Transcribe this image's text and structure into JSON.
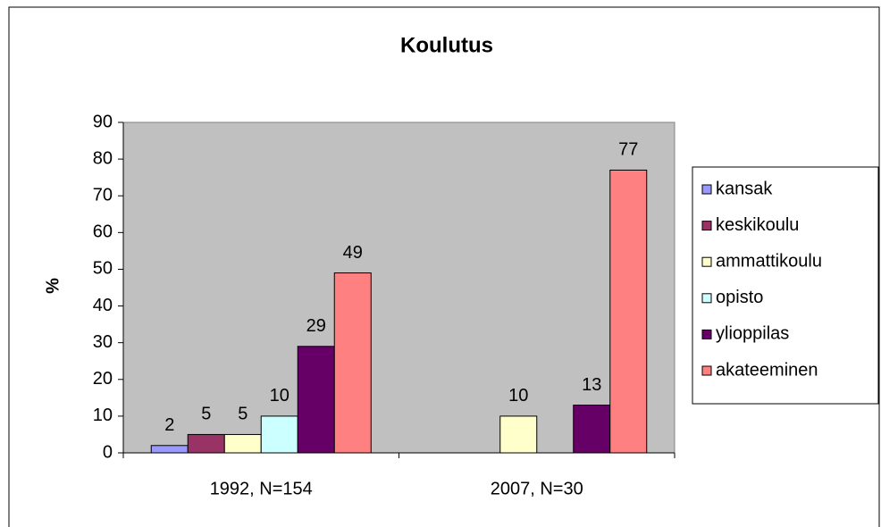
{
  "chart_data": {
    "type": "bar",
    "title": "Koulutus",
    "y_label": "%",
    "categories": [
      "1992, N=154",
      "2007, N=30"
    ],
    "series": [
      {
        "name": "kansak",
        "color": "#9999ff",
        "values": [
          2,
          null
        ]
      },
      {
        "name": "keskikoulu",
        "color": "#993366",
        "values": [
          5,
          null
        ]
      },
      {
        "name": "ammattikoulu",
        "color": "#ffffcc",
        "values": [
          5,
          10
        ]
      },
      {
        "name": "opisto",
        "color": "#ccffff",
        "values": [
          10,
          null
        ]
      },
      {
        "name": "ylioppilas",
        "color": "#660066",
        "values": [
          29,
          13
        ]
      },
      {
        "name": "akateeminen",
        "color": "#ff8080",
        "values": [
          49,
          77
        ]
      }
    ],
    "ylim": [
      0,
      90
    ],
    "yticks": [
      0,
      10,
      20,
      30,
      40,
      50,
      60,
      70,
      80,
      90
    ],
    "grid": false,
    "legend": "right",
    "plot_background": "#c0c0c0"
  }
}
